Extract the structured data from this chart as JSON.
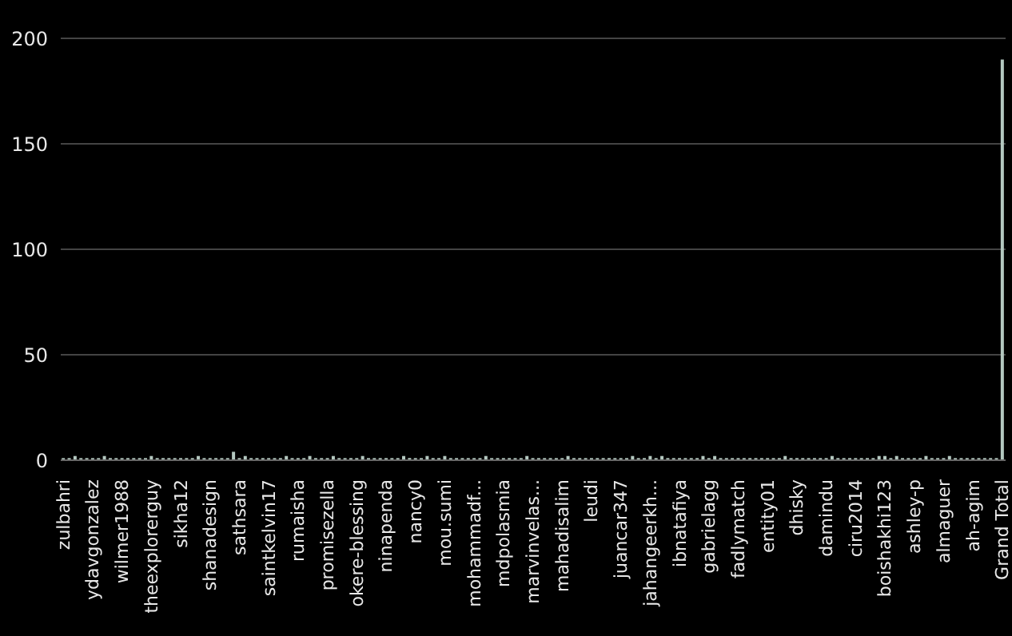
{
  "chart_data": {
    "type": "bar",
    "categories": [
      "zulbahri",
      null,
      null,
      null,
      null,
      "ydavgonzalez",
      null,
      null,
      null,
      null,
      "wilmer1988",
      null,
      null,
      null,
      null,
      "theexplorerguy",
      null,
      null,
      null,
      null,
      "sikha12",
      null,
      null,
      null,
      null,
      "shanadesign",
      null,
      null,
      null,
      null,
      "sathsara",
      null,
      null,
      null,
      null,
      "saintkelvin17",
      null,
      null,
      null,
      null,
      "rumaisha",
      null,
      null,
      null,
      null,
      "promisezella",
      null,
      null,
      null,
      null,
      "okere-blessing",
      null,
      null,
      null,
      null,
      "ninapenda",
      null,
      null,
      null,
      null,
      "nancy0",
      null,
      null,
      null,
      null,
      "mou.sumi",
      null,
      null,
      null,
      null,
      "mohammadf...",
      null,
      null,
      null,
      null,
      "mdpolasmia",
      null,
      null,
      null,
      null,
      "marvinvelas...",
      null,
      null,
      null,
      null,
      "mahadisalim",
      null,
      null,
      null,
      null,
      "leudi",
      null,
      null,
      null,
      null,
      "juancar347",
      null,
      null,
      null,
      null,
      "jahangeerkh...",
      null,
      null,
      null,
      null,
      "ibnatafiya",
      null,
      null,
      null,
      null,
      "gabrielagg",
      null,
      null,
      null,
      null,
      "fadlymatch",
      null,
      null,
      null,
      null,
      "entity01",
      null,
      null,
      null,
      null,
      "dhisky",
      null,
      null,
      null,
      null,
      "damindu",
      null,
      null,
      null,
      null,
      "ciru2014",
      null,
      null,
      null,
      null,
      "boishakhi123",
      null,
      null,
      null,
      null,
      "ashley-p",
      null,
      null,
      null,
      null,
      "almaguer",
      null,
      null,
      null,
      null,
      "ah-agim",
      null,
      null,
      null,
      null,
      "Grand Total"
    ],
    "values": [
      1,
      1,
      2,
      1,
      1,
      1,
      1,
      2,
      1,
      1,
      1,
      1,
      1,
      1,
      1,
      2,
      1,
      1,
      1,
      1,
      1,
      1,
      1,
      2,
      1,
      1,
      1,
      1,
      1,
      4,
      1,
      2,
      1,
      1,
      1,
      1,
      1,
      1,
      2,
      1,
      1,
      1,
      2,
      1,
      1,
      1,
      2,
      1,
      1,
      1,
      1,
      2,
      1,
      1,
      1,
      1,
      1,
      1,
      2,
      1,
      1,
      1,
      2,
      1,
      1,
      2,
      1,
      1,
      1,
      1,
      1,
      1,
      2,
      1,
      1,
      1,
      1,
      1,
      1,
      2,
      1,
      1,
      1,
      1,
      1,
      1,
      2,
      1,
      1,
      1,
      1,
      1,
      1,
      1,
      1,
      1,
      1,
      2,
      1,
      1,
      2,
      1,
      2,
      1,
      1,
      1,
      1,
      1,
      1,
      2,
      1,
      2,
      1,
      1,
      1,
      1,
      1,
      1,
      1,
      1,
      1,
      1,
      1,
      2,
      1,
      1,
      1,
      1,
      1,
      1,
      1,
      2,
      1,
      1,
      1,
      1,
      1,
      1,
      1,
      2,
      2,
      1,
      2,
      1,
      1,
      1,
      1,
      2,
      1,
      1,
      1,
      2,
      1,
      1,
      1,
      1,
      1,
      1,
      1,
      1,
      190
    ],
    "color": "#b4c8c0",
    "ylim": [
      0,
      200
    ],
    "yticks": [
      0,
      50,
      100,
      150,
      200
    ],
    "grid": "y"
  }
}
